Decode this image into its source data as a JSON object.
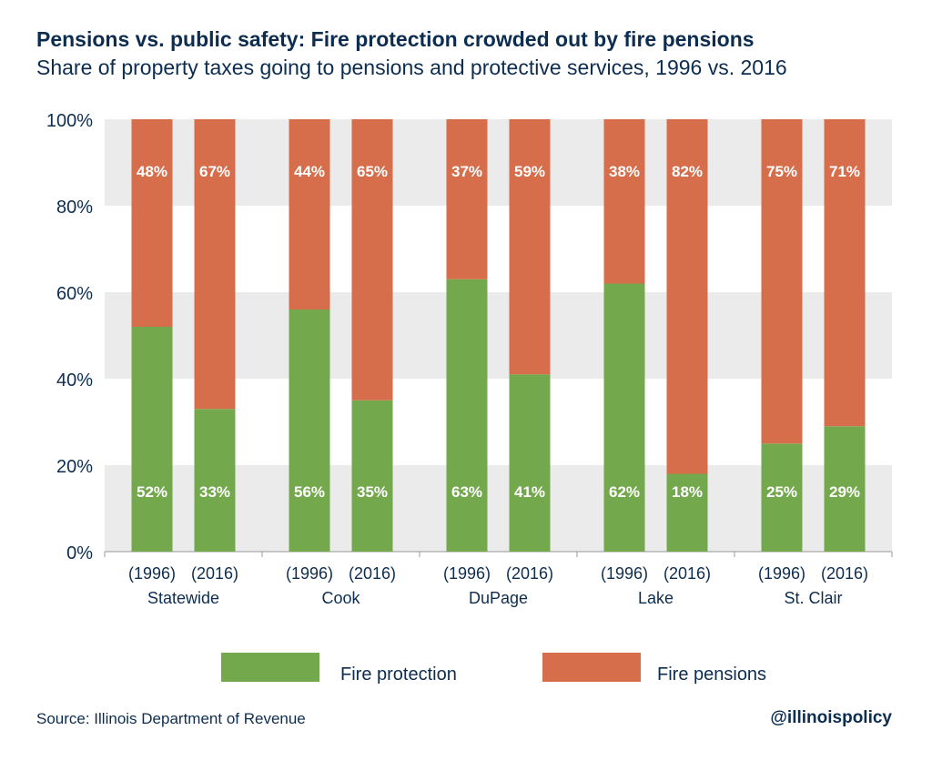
{
  "title": "Pensions vs. public safety: Fire protection crowded out by fire pensions",
  "subtitle": "Share of property taxes going to pensions and protective services, 1996 vs. 2016",
  "source": "Source: Illinois Department of Revenue",
  "handle": "@illinoispolicy",
  "colors": {
    "fire_protection": "#74a84d",
    "fire_pensions": "#d66d4b",
    "band": "#ebebeb",
    "text": "#0d2d50"
  },
  "chart_data": {
    "type": "bar",
    "stacked": true,
    "categories": [
      "(1996)",
      "(2016)",
      "(1996)",
      "(2016)",
      "(1996)",
      "(2016)",
      "(1996)",
      "(2016)",
      "(1996)",
      "(2016)"
    ],
    "groups": [
      "Statewide",
      "Cook",
      "DuPage",
      "Lake",
      "St. Clair"
    ],
    "series": [
      {
        "name": "Fire protection",
        "values": [
          52,
          33,
          56,
          35,
          63,
          41,
          62,
          18,
          25,
          29
        ],
        "labels": [
          "52%",
          "33%",
          "56%",
          "35%",
          "63%",
          "41%",
          "62%",
          "18%",
          "25%",
          "29%"
        ]
      },
      {
        "name": "Fire pensions",
        "values": [
          48,
          67,
          44,
          65,
          37,
          59,
          38,
          82,
          75,
          71
        ],
        "labels": [
          "48%",
          "67%",
          "44%",
          "65%",
          "37%",
          "59%",
          "38%",
          "82%",
          "75%",
          "71%"
        ]
      }
    ],
    "yticks": [
      "0%",
      "20%",
      "40%",
      "60%",
      "80%",
      "100%"
    ],
    "ylim": [
      0,
      100
    ],
    "legend_position": "bottom",
    "grid": "alternating bands"
  }
}
